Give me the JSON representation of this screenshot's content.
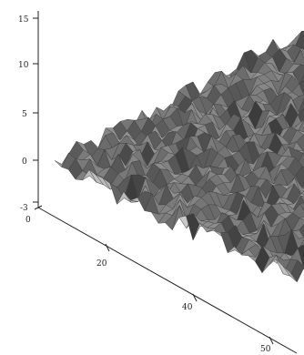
{
  "chart_data": {
    "type": "surface",
    "title": "",
    "xlabel": "",
    "ylabel": "",
    "zlabel": "",
    "grid": false,
    "legend": "none",
    "colors": {
      "surface": "#8f8f8f",
      "surface_dark": "#3a3a3a",
      "axis": "#222222",
      "background": "#ffffff"
    },
    "z_axis": {
      "ticks": [
        "-3",
        "0",
        "5",
        "10",
        "15"
      ]
    },
    "x_axis": {
      "ticks": [
        "0",
        "20",
        "40",
        "50"
      ]
    },
    "zlim": [
      -3,
      15
    ]
  }
}
